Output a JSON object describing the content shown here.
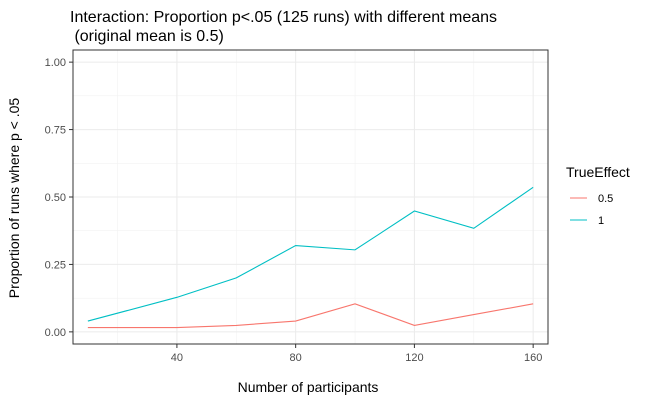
{
  "chart_data": {
    "type": "line",
    "title_line1": "Interaction: Proportion p<.05 (125 runs) with different means",
    "title_line2": " (original mean is 0.5)",
    "xlabel": "Number of participants",
    "ylabel": "Proportion of runs where p < .05",
    "xlim": [
      5,
      165
    ],
    "ylim": [
      -0.045,
      1.045
    ],
    "x_ticks": [
      40,
      80,
      120,
      160
    ],
    "y_ticks": [
      0.0,
      0.25,
      0.5,
      0.75,
      1.0
    ],
    "x_tick_labels": [
      "40",
      "80",
      "120",
      "160"
    ],
    "y_tick_labels": [
      "0.00",
      "0.25",
      "0.50",
      "0.75",
      "1.00"
    ],
    "grid": true,
    "legend_title": "TrueEffect",
    "legend_position": "right",
    "x": [
      10,
      40,
      60,
      80,
      100,
      120,
      140,
      160
    ],
    "series": [
      {
        "name": "0.5",
        "color": "#F8766D",
        "values": [
          0.016,
          0.016,
          0.024,
          0.04,
          0.104,
          0.024,
          0.064,
          0.104
        ]
      },
      {
        "name": "1",
        "color": "#00BFC4",
        "values": [
          0.04,
          0.128,
          0.2,
          0.32,
          0.304,
          0.448,
          0.384,
          0.536
        ]
      }
    ]
  }
}
